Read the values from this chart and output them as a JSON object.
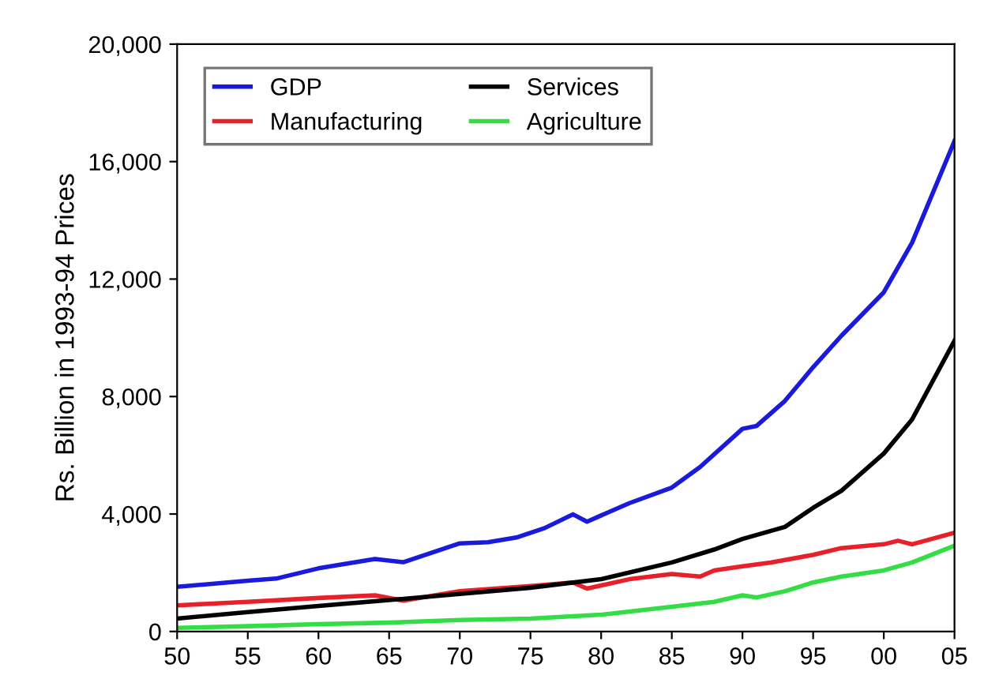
{
  "chart_data": {
    "type": "line",
    "ylabel": "Rs. Billion in 1993-94 Prices",
    "xlim": [
      1950,
      2005
    ],
    "xticks": [
      {
        "value": 1950,
        "label": "50"
      },
      {
        "value": 1955,
        "label": "55"
      },
      {
        "value": 1960,
        "label": "60"
      },
      {
        "value": 1965,
        "label": "65"
      },
      {
        "value": 1970,
        "label": "70"
      },
      {
        "value": 1975,
        "label": "75"
      },
      {
        "value": 1980,
        "label": "80"
      },
      {
        "value": 1985,
        "label": "85"
      },
      {
        "value": 1990,
        "label": "90"
      },
      {
        "value": 1995,
        "label": "95"
      },
      {
        "value": 2000,
        "label": "00"
      },
      {
        "value": 2005,
        "label": "05"
      }
    ],
    "ylim": [
      0,
      20000
    ],
    "yticks": [
      {
        "value": 0,
        "label": "0"
      },
      {
        "value": 4000,
        "label": "4,000"
      },
      {
        "value": 8000,
        "label": "8,000"
      },
      {
        "value": 12000,
        "label": "12,000"
      },
      {
        "value": 16000,
        "label": "16,000"
      },
      {
        "value": 20000,
        "label": "20,000"
      }
    ],
    "grid": false,
    "legend": "top left",
    "marker": "none",
    "line_style": "solid",
    "series": [
      {
        "name": "GDP",
        "color": "#1a1adc",
        "x": [
          1950,
          1955,
          1957,
          1960,
          1964,
          1966,
          1970,
          1972,
          1974,
          1976,
          1978,
          1979,
          1982,
          1985,
          1987,
          1990,
          1991,
          1993,
          1995,
          1997,
          2000,
          2002,
          2005
        ],
        "values": [
          1520,
          1730,
          1800,
          2150,
          2470,
          2360,
          3000,
          3040,
          3200,
          3520,
          3990,
          3740,
          4370,
          4900,
          5600,
          6900,
          7000,
          7850,
          9000,
          10070,
          11550,
          13240,
          16700
        ]
      },
      {
        "name": "Manufacturing",
        "color": "#e8202a",
        "x": [
          1950,
          1955,
          1960,
          1964,
          1966,
          1970,
          1975,
          1978,
          1979,
          1982,
          1985,
          1987,
          1988,
          1990,
          1992,
          1995,
          1997,
          2000,
          2001,
          2002,
          2005
        ],
        "values": [
          890,
          1010,
          1140,
          1230,
          1050,
          1370,
          1550,
          1670,
          1460,
          1780,
          1960,
          1870,
          2080,
          2220,
          2350,
          2610,
          2840,
          2970,
          3090,
          2970,
          3360
        ]
      },
      {
        "name": "Services",
        "color": "#000000",
        "x": [
          1950,
          1955,
          1960,
          1965,
          1970,
          1975,
          1980,
          1985,
          1988,
          1990,
          1993,
          1995,
          1997,
          2000,
          2002,
          2005
        ],
        "values": [
          440,
          660,
          870,
          1070,
          1280,
          1490,
          1780,
          2350,
          2790,
          3150,
          3560,
          4210,
          4790,
          6060,
          7220,
          9900
        ]
      },
      {
        "name": "Agriculture",
        "color": "#33dd44",
        "x": [
          1950,
          1955,
          1960,
          1965,
          1970,
          1975,
          1980,
          1985,
          1988,
          1990,
          1991,
          1993,
          1995,
          1997,
          2000,
          2002,
          2005
        ],
        "values": [
          120,
          180,
          250,
          300,
          390,
          440,
          570,
          840,
          1010,
          1230,
          1160,
          1370,
          1670,
          1870,
          2080,
          2350,
          2920
        ]
      }
    ]
  }
}
